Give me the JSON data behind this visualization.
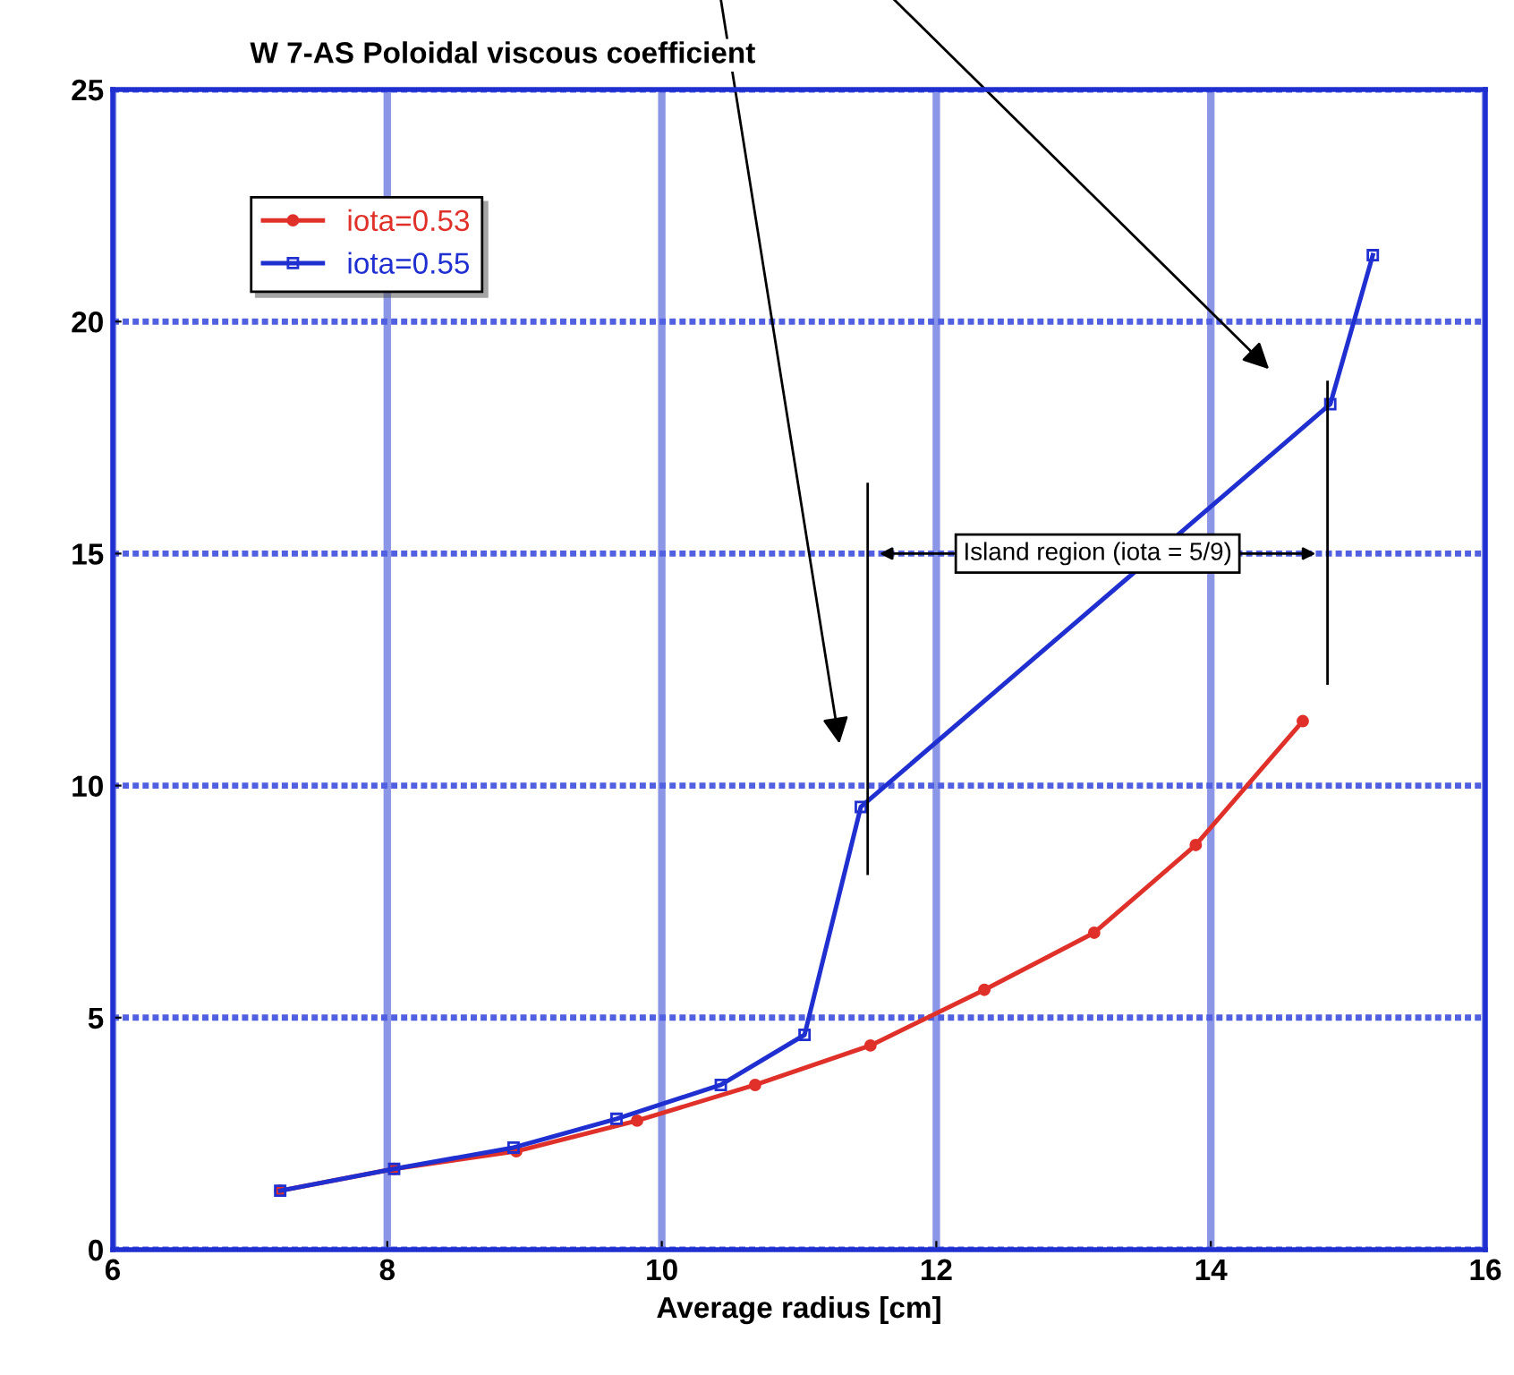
{
  "chart_data": {
    "type": "line",
    "title": "W 7-AS Poloidal viscous coefficient",
    "xlabel": "Average radius [cm]",
    "xlim": [
      6,
      16
    ],
    "xticks": [
      6,
      8,
      10,
      12,
      14,
      16
    ],
    "ylim": [
      0,
      25
    ],
    "yticks": [
      0,
      5,
      10,
      15,
      20,
      25
    ],
    "grid": true,
    "legend": "top left",
    "series": [
      {
        "name": "iota=0.53",
        "color": "#e0302a",
        "marker": "circle",
        "x": [
          7.22,
          8.05,
          8.94,
          9.82,
          10.68,
          11.52,
          12.35,
          13.15,
          13.89,
          14.67
        ],
        "values": [
          1.27,
          1.74,
          2.12,
          2.78,
          3.55,
          4.4,
          5.6,
          6.83,
          8.72,
          11.39
        ]
      },
      {
        "name": "iota=0.55",
        "color": "#1f2fd0",
        "marker": "square",
        "x": [
          7.22,
          8.05,
          8.92,
          9.67,
          10.43,
          11.04,
          11.45,
          14.87,
          15.18
        ],
        "values": [
          1.27,
          1.74,
          2.2,
          2.82,
          3.55,
          4.63,
          9.54,
          18.22,
          21.43
        ]
      }
    ],
    "ref_lines": [
      {
        "axis": "x",
        "value": 11.5,
        "color": "#000000"
      },
      {
        "axis": "x",
        "value": 14.85,
        "color": "#000000"
      }
    ],
    "annotations": [
      "Island region (iota = 5/9)"
    ]
  }
}
